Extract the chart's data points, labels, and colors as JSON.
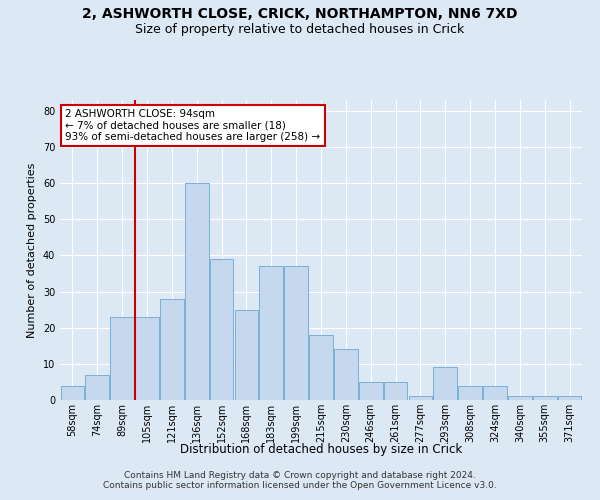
{
  "title1": "2, ASHWORTH CLOSE, CRICK, NORTHAMPTON, NN6 7XD",
  "title2": "Size of property relative to detached houses in Crick",
  "xlabel": "Distribution of detached houses by size in Crick",
  "ylabel": "Number of detached properties",
  "bin_labels": [
    "58sqm",
    "74sqm",
    "89sqm",
    "105sqm",
    "121sqm",
    "136sqm",
    "152sqm",
    "168sqm",
    "183sqm",
    "199sqm",
    "215sqm",
    "230sqm",
    "246sqm",
    "261sqm",
    "277sqm",
    "293sqm",
    "308sqm",
    "324sqm",
    "340sqm",
    "355sqm",
    "371sqm"
  ],
  "bar_heights": [
    4,
    7,
    23,
    23,
    28,
    60,
    39,
    25,
    37,
    37,
    18,
    14,
    5,
    5,
    1,
    9,
    4,
    4,
    1,
    1,
    1
  ],
  "bar_color": "#c5d8ee",
  "bar_edge_color": "#7aafd4",
  "vline_color": "#cc0000",
  "vline_x_index": 2.5,
  "annotation_text": "2 ASHWORTH CLOSE: 94sqm\n← 7% of detached houses are smaller (18)\n93% of semi-detached houses are larger (258) →",
  "annotation_box_color": "#ffffff",
  "annotation_border_color": "#cc0000",
  "ylim": [
    0,
    83
  ],
  "yticks": [
    0,
    10,
    20,
    30,
    40,
    50,
    60,
    70,
    80
  ],
  "bg_color": "#dde8f5",
  "plot_bg_color": "#dde8f5",
  "grid_color": "#ffffff",
  "footer": "Contains HM Land Registry data © Crown copyright and database right 2024.\nContains public sector information licensed under the Open Government Licence v3.0.",
  "title1_fontsize": 10,
  "title2_fontsize": 9,
  "xlabel_fontsize": 8.5,
  "ylabel_fontsize": 8,
  "tick_fontsize": 7,
  "annotation_fontsize": 7.5,
  "footer_fontsize": 6.5
}
